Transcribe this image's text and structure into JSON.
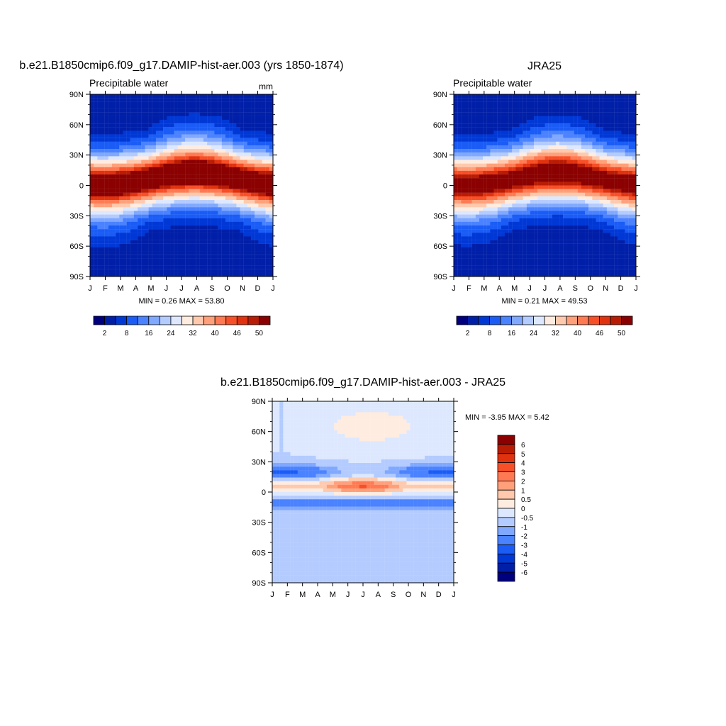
{
  "colors": {
    "precip_scale": [
      "#00007f",
      "#001fa8",
      "#0038d6",
      "#1a5cf5",
      "#4a82ff",
      "#80a8ff",
      "#b3cbff",
      "#dde8ff",
      "#ffece0",
      "#ffc9ad",
      "#ffa07a",
      "#ff7a52",
      "#f74f27",
      "#e0320f",
      "#b81c05",
      "#8b0000"
    ],
    "diff_scale": [
      "#00007f",
      "#001fa8",
      "#0038d6",
      "#1a5cf5",
      "#4a82ff",
      "#80a8ff",
      "#b3cbff",
      "#dde8ff",
      "#ffece0",
      "#ffc9ad",
      "#ffa07a",
      "#ff7a52",
      "#f74f27",
      "#e0320f",
      "#b81c05",
      "#8b0000"
    ]
  },
  "chart_data": [
    {
      "type": "heatmap",
      "title": "b.e21.B1850cmip6.f09_g17.DAMIP-hist-aer.003 (yrs 1850-1874)",
      "subtitle_left": "Precipitable water",
      "subtitle_right": "mm",
      "x_tick_labels": [
        "J",
        "F",
        "M",
        "A",
        "M",
        "J",
        "J",
        "A",
        "S",
        "O",
        "N",
        "D",
        "J"
      ],
      "y_tick_labels": [
        "90N",
        "60N",
        "30N",
        "0",
        "30S",
        "60S",
        "90S"
      ],
      "ylim": [
        -90,
        90
      ],
      "stats_text": "MIN =   0.26 MAX =  53.80",
      "min": 0.26,
      "max": 53.8,
      "colorbar_labels": [
        "2",
        "8",
        "16",
        "24",
        "32",
        "40",
        "46",
        "50"
      ]
    },
    {
      "type": "heatmap",
      "title": "JRA25",
      "subtitle_left": "Precipitable water",
      "subtitle_right": "",
      "x_tick_labels": [
        "J",
        "F",
        "M",
        "A",
        "M",
        "J",
        "J",
        "A",
        "S",
        "O",
        "N",
        "D",
        "J"
      ],
      "y_tick_labels": [
        "90N",
        "60N",
        "30N",
        "0",
        "30S",
        "60S",
        "90S"
      ],
      "ylim": [
        -90,
        90
      ],
      "stats_text": "MIN =   0.21 MAX =  49.53",
      "min": 0.21,
      "max": 49.53,
      "colorbar_labels": [
        "2",
        "8",
        "16",
        "24",
        "32",
        "40",
        "46",
        "50"
      ]
    },
    {
      "type": "heatmap",
      "title": "b.e21.B1850cmip6.f09_g17.DAMIP-hist-aer.003 - JRA25",
      "x_tick_labels": [
        "J",
        "F",
        "M",
        "A",
        "M",
        "J",
        "J",
        "A",
        "S",
        "O",
        "N",
        "D",
        "J"
      ],
      "y_tick_labels": [
        "90N",
        "60N",
        "30N",
        "0",
        "30S",
        "60S",
        "90S"
      ],
      "ylim": [
        -90,
        90
      ],
      "stats_text": "MIN =  -3.95 MAX =   5.42",
      "min": -3.95,
      "max": 5.42,
      "colorbar_labels": [
        "6",
        "5",
        "4",
        "3",
        "2",
        "1",
        "0.5",
        "0",
        "-0.5",
        "-1",
        "-2",
        "-3",
        "-4",
        "-5",
        "-6"
      ]
    }
  ]
}
